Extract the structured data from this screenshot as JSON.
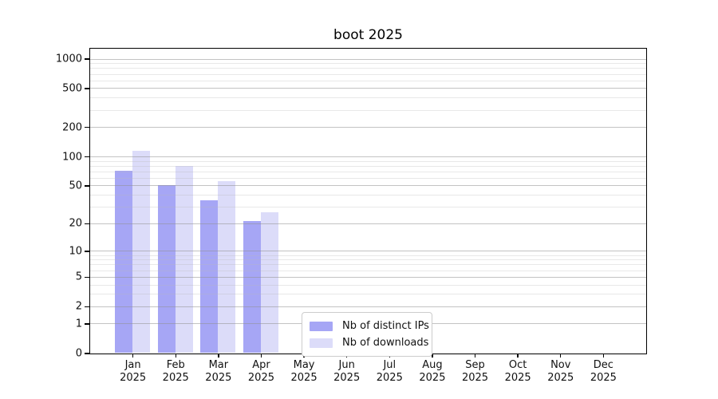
{
  "chart_data": {
    "type": "bar",
    "title": "boot 2025",
    "scale": "log1p (symlog-like: ticks at 0,1,2,5,... with log spacing of value+1)",
    "xlabel": "",
    "ylabel": "",
    "year": "2025",
    "categories": [
      "Jan",
      "Feb",
      "Mar",
      "Apr",
      "May",
      "Jun",
      "Jul",
      "Aug",
      "Sep",
      "Oct",
      "Nov",
      "Dec"
    ],
    "series": [
      {
        "name": "Nb of distinct IPs",
        "color": "#a6a6f5",
        "values": [
          71,
          50,
          35,
          21,
          0,
          0,
          0,
          0,
          0,
          0,
          0,
          0
        ]
      },
      {
        "name": "Nb of downloads",
        "color": "#dcdcf9",
        "values": [
          114,
          80,
          56,
          26,
          0,
          0,
          0,
          0,
          0,
          0,
          0,
          0
        ]
      }
    ],
    "yticks": [
      0,
      1,
      2,
      5,
      10,
      20,
      50,
      100,
      200,
      500,
      1000
    ],
    "minor_gridlines": [
      3,
      4,
      6,
      7,
      8,
      9,
      30,
      40,
      60,
      70,
      80,
      90,
      300,
      400,
      600,
      700,
      800,
      900
    ],
    "ylim": [
      0,
      1275
    ],
    "grid": "horizontal only, major + minor",
    "legend": {
      "position": "lower center",
      "entries": [
        "Nb of distinct IPs",
        "Nb of downloads"
      ]
    },
    "colors": {
      "frame": "#000000",
      "text": "#111111",
      "major_grid": "#c6c6c6",
      "minor_grid": "#eaeaea",
      "background": "#ffffff"
    }
  }
}
